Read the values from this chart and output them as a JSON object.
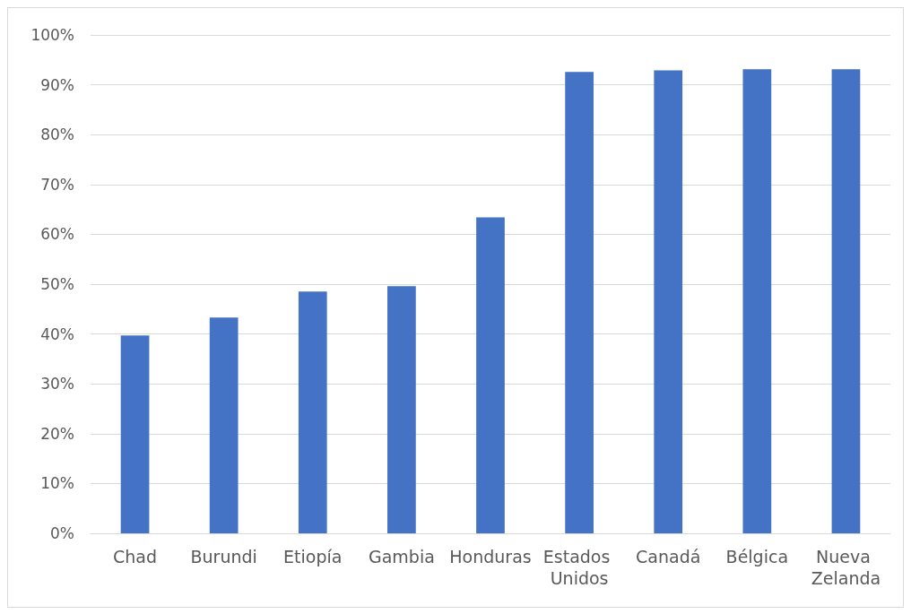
{
  "chart_data": {
    "type": "bar",
    "categories": [
      "Chad",
      "Burundi",
      "Etiopía",
      "Gambia",
      "Honduras",
      "Estados Unidos",
      "Canadá",
      "Bélgica",
      "Nueva Zelanda"
    ],
    "values": [
      39.7,
      43.3,
      48.5,
      49.6,
      63.4,
      92.6,
      92.9,
      93.1,
      93.1
    ],
    "color": "#4472c4",
    "ylim": [
      0,
      100
    ],
    "yticks": [
      {
        "value": 0,
        "label": "0%"
      },
      {
        "value": 10,
        "label": "10%"
      },
      {
        "value": 20,
        "label": "20%"
      },
      {
        "value": 30,
        "label": "30%"
      },
      {
        "value": 40,
        "label": "40%"
      },
      {
        "value": 50,
        "label": "50%"
      },
      {
        "value": 60,
        "label": "60%"
      },
      {
        "value": 70,
        "label": "70%"
      },
      {
        "value": 80,
        "label": "80%"
      },
      {
        "value": 90,
        "label": "90%"
      },
      {
        "value": 100,
        "label": "100%"
      }
    ],
    "grid": "y"
  }
}
